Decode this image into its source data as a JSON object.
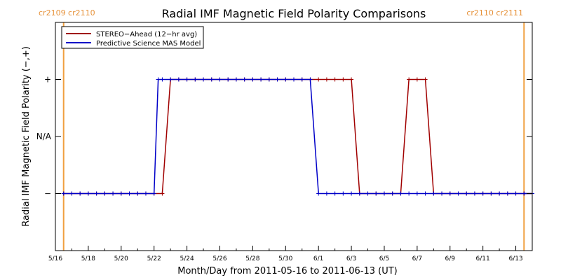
{
  "chart_data": {
    "type": "line",
    "title": "Radial IMF Magnetic Field Polarity Comparisons",
    "xlabel": "Month/Day from 2011-05-16 to 2011-06-13 (UT)",
    "ylabel": "Radial IMF Magnetic Field Polarity (−,+)",
    "x_range": [
      "2011-05-16",
      "2011-06-14"
    ],
    "x_ticks": [
      "5/16",
      "5/18",
      "5/20",
      "5/22",
      "5/24",
      "5/26",
      "5/28",
      "5/30",
      "6/1",
      "6/3",
      "6/5",
      "6/7",
      "6/9",
      "6/11",
      "6/13"
    ],
    "y_levels": [
      {
        "value": 1,
        "label": "+"
      },
      {
        "value": 0,
        "label": "N/A"
      },
      {
        "value": -1,
        "label": "−"
      }
    ],
    "ylim": [
      -2,
      2
    ],
    "carrington_markers": [
      {
        "date": "2011-05-16T12:00",
        "label": "cr2109 cr2110",
        "side": "left"
      },
      {
        "date": "2011-06-13T12:00",
        "label": "cr2110 cr2111",
        "side": "right"
      }
    ],
    "legend": {
      "placement": "top-left",
      "entries": [
        {
          "name": "STEREO−Ahead (12−hr avg)",
          "color": "#a00000"
        },
        {
          "name": "Predictive Science MAS Model",
          "color": "#0000c8"
        }
      ]
    },
    "series": [
      {
        "name": "STEREO−Ahead (12−hr avg)",
        "color": "#a00000",
        "markers": true,
        "points": [
          [
            "2011-05-16T12:00",
            -1
          ],
          [
            "2011-05-17T00:00",
            -1
          ],
          [
            "2011-05-17T12:00",
            -1
          ],
          [
            "2011-05-18T00:00",
            -1
          ],
          [
            "2011-05-18T12:00",
            -1
          ],
          [
            "2011-05-19T00:00",
            -1
          ],
          [
            "2011-05-19T12:00",
            -1
          ],
          [
            "2011-05-20T00:00",
            -1
          ],
          [
            "2011-05-20T12:00",
            -1
          ],
          [
            "2011-05-21T00:00",
            -1
          ],
          [
            "2011-05-21T12:00",
            -1
          ],
          [
            "2011-05-22T00:00",
            -1
          ],
          [
            "2011-05-22T12:00",
            -1
          ],
          [
            "2011-05-23T00:00",
            1
          ],
          [
            "2011-05-23T12:00",
            1
          ],
          [
            "2011-05-24T00:00",
            1
          ],
          [
            "2011-05-24T12:00",
            1
          ],
          [
            "2011-05-25T00:00",
            1
          ],
          [
            "2011-05-25T12:00",
            1
          ],
          [
            "2011-05-26T00:00",
            1
          ],
          [
            "2011-05-26T12:00",
            1
          ],
          [
            "2011-05-27T00:00",
            1
          ],
          [
            "2011-05-27T12:00",
            1
          ],
          [
            "2011-05-28T00:00",
            1
          ],
          [
            "2011-05-28T12:00",
            1
          ],
          [
            "2011-05-29T00:00",
            1
          ],
          [
            "2011-05-29T12:00",
            1
          ],
          [
            "2011-05-30T00:00",
            1
          ],
          [
            "2011-05-30T12:00",
            1
          ],
          [
            "2011-05-31T00:00",
            1
          ],
          [
            "2011-05-31T12:00",
            1
          ],
          [
            "2011-06-01T00:00",
            1
          ],
          [
            "2011-06-01T12:00",
            1
          ],
          [
            "2011-06-02T00:00",
            1
          ],
          [
            "2011-06-02T12:00",
            1
          ],
          [
            "2011-06-03T00:00",
            1
          ],
          [
            "2011-06-03T12:00",
            -1
          ],
          [
            "2011-06-04T00:00",
            -1
          ],
          [
            "2011-06-04T12:00",
            -1
          ],
          [
            "2011-06-05T00:00",
            -1
          ],
          [
            "2011-06-05T12:00",
            -1
          ],
          [
            "2011-06-06T00:00",
            -1
          ],
          [
            "2011-06-06T12:00",
            1
          ],
          [
            "2011-06-07T00:00",
            1
          ],
          [
            "2011-06-07T12:00",
            1
          ],
          [
            "2011-06-08T00:00",
            -1
          ],
          [
            "2011-06-08T12:00",
            -1
          ],
          [
            "2011-06-09T00:00",
            -1
          ],
          [
            "2011-06-09T12:00",
            -1
          ],
          [
            "2011-06-10T00:00",
            -1
          ],
          [
            "2011-06-10T12:00",
            -1
          ],
          [
            "2011-06-11T00:00",
            -1
          ],
          [
            "2011-06-11T12:00",
            -1
          ],
          [
            "2011-06-12T00:00",
            -1
          ],
          [
            "2011-06-12T12:00",
            -1
          ],
          [
            "2011-06-13T00:00",
            -1
          ],
          [
            "2011-06-13T12:00",
            -1
          ],
          [
            "2011-06-14T00:00",
            -1
          ]
        ]
      },
      {
        "name": "Predictive Science MAS Model",
        "color": "#0000c8",
        "markers": true,
        "points": [
          [
            "2011-05-16T12:00",
            -1
          ],
          [
            "2011-05-17T00:00",
            -1
          ],
          [
            "2011-05-17T12:00",
            -1
          ],
          [
            "2011-05-18T00:00",
            -1
          ],
          [
            "2011-05-18T12:00",
            -1
          ],
          [
            "2011-05-19T00:00",
            -1
          ],
          [
            "2011-05-19T12:00",
            -1
          ],
          [
            "2011-05-20T00:00",
            -1
          ],
          [
            "2011-05-20T12:00",
            -1
          ],
          [
            "2011-05-21T00:00",
            -1
          ],
          [
            "2011-05-21T12:00",
            -1
          ],
          [
            "2011-05-22T00:00",
            -1
          ],
          [
            "2011-05-22T06:00",
            1
          ],
          [
            "2011-05-22T12:00",
            1
          ],
          [
            "2011-05-23T00:00",
            1
          ],
          [
            "2011-05-23T12:00",
            1
          ],
          [
            "2011-05-24T00:00",
            1
          ],
          [
            "2011-05-24T12:00",
            1
          ],
          [
            "2011-05-25T00:00",
            1
          ],
          [
            "2011-05-25T12:00",
            1
          ],
          [
            "2011-05-26T00:00",
            1
          ],
          [
            "2011-05-26T12:00",
            1
          ],
          [
            "2011-05-27T00:00",
            1
          ],
          [
            "2011-05-27T12:00",
            1
          ],
          [
            "2011-05-28T00:00",
            1
          ],
          [
            "2011-05-28T12:00",
            1
          ],
          [
            "2011-05-29T00:00",
            1
          ],
          [
            "2011-05-29T12:00",
            1
          ],
          [
            "2011-05-30T00:00",
            1
          ],
          [
            "2011-05-30T12:00",
            1
          ],
          [
            "2011-05-31T00:00",
            1
          ],
          [
            "2011-05-31T12:00",
            1
          ],
          [
            "2011-06-01T00:00",
            -1
          ],
          [
            "2011-06-01T12:00",
            -1
          ],
          [
            "2011-06-02T00:00",
            -1
          ],
          [
            "2011-06-02T12:00",
            -1
          ],
          [
            "2011-06-03T00:00",
            -1
          ],
          [
            "2011-06-03T12:00",
            -1
          ],
          [
            "2011-06-04T00:00",
            -1
          ],
          [
            "2011-06-04T12:00",
            -1
          ],
          [
            "2011-06-05T00:00",
            -1
          ],
          [
            "2011-06-05T12:00",
            -1
          ],
          [
            "2011-06-06T00:00",
            -1
          ],
          [
            "2011-06-06T12:00",
            -1
          ],
          [
            "2011-06-07T00:00",
            -1
          ],
          [
            "2011-06-07T12:00",
            -1
          ],
          [
            "2011-06-08T00:00",
            -1
          ],
          [
            "2011-06-08T12:00",
            -1
          ],
          [
            "2011-06-09T00:00",
            -1
          ],
          [
            "2011-06-09T12:00",
            -1
          ],
          [
            "2011-06-10T00:00",
            -1
          ],
          [
            "2011-06-10T12:00",
            -1
          ],
          [
            "2011-06-11T00:00",
            -1
          ],
          [
            "2011-06-11T12:00",
            -1
          ],
          [
            "2011-06-12T00:00",
            -1
          ],
          [
            "2011-06-12T12:00",
            -1
          ],
          [
            "2011-06-13T00:00",
            -1
          ],
          [
            "2011-06-13T12:00",
            -1
          ],
          [
            "2011-06-14T00:00",
            -1
          ]
        ]
      }
    ],
    "grid": false,
    "colors": {
      "carrington": "#f0a040",
      "axis": "#000000"
    }
  }
}
